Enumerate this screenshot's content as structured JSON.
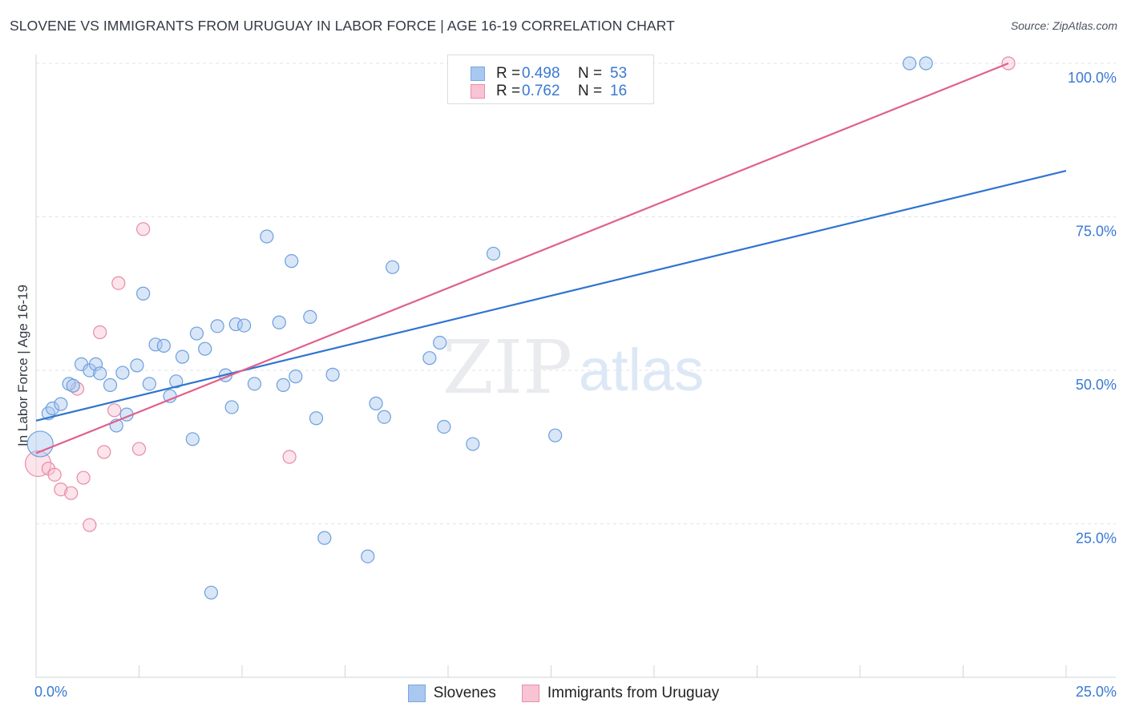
{
  "header": {
    "title": "SLOVENE VS IMMIGRANTS FROM URUGUAY IN LABOR FORCE | AGE 16-19 CORRELATION CHART",
    "source": "Source: ZipAtlas.com"
  },
  "watermark": {
    "zip": "ZIP",
    "atlas": "atlas"
  },
  "legend_top": {
    "rows": [
      {
        "r_label": "R =",
        "r_value": "0.498",
        "n_label": "N =",
        "n_value": "53",
        "color": "#a9c8f0",
        "border": "#7aa7e0"
      },
      {
        "r_label": "R =",
        "r_value": "0.762",
        "n_label": "N =",
        "n_value": "16",
        "color": "#f8c3d3",
        "border": "#ea8fab"
      }
    ]
  },
  "legend_bottom": {
    "items": [
      {
        "label": "Slovenes",
        "color": "#a9c8f0",
        "border": "#7aa7e0"
      },
      {
        "label": "Immigrants from Uruguay",
        "color": "#f8c3d3",
        "border": "#ea8fab"
      }
    ]
  },
  "chart_data": {
    "type": "scatter",
    "title": "SLOVENE VS IMMIGRANTS FROM URUGUAY IN LABOR FORCE | AGE 16-19 CORRELATION CHART",
    "xlabel": "",
    "ylabel": "In Labor Force | Age 16-19",
    "xlim": [
      0,
      25
    ],
    "ylim": [
      0,
      100
    ],
    "x_tick_labels": [
      "0.0%",
      "25.0%"
    ],
    "y_ticks": [
      25,
      50,
      75,
      100
    ],
    "y_tick_labels": [
      "25.0%",
      "50.0%",
      "75.0%",
      "100.0%"
    ],
    "grid": true,
    "colors": {
      "slovenes": "#2f74d0",
      "uruguay": "#e0608d",
      "axis_label": "#3a79d3"
    },
    "series": [
      {
        "name": "Slovenes",
        "color": "#a9c8f0",
        "line_color": "#2f74d0",
        "trend": {
          "x": [
            0,
            25
          ],
          "y": [
            41.8,
            82.5
          ]
        },
        "points": [
          {
            "x": 0.1,
            "y": 38.0,
            "large": true
          },
          {
            "x": 0.3,
            "y": 43.0
          },
          {
            "x": 0.4,
            "y": 43.8
          },
          {
            "x": 0.6,
            "y": 44.5
          },
          {
            "x": 0.8,
            "y": 47.8
          },
          {
            "x": 0.9,
            "y": 47.5
          },
          {
            "x": 1.1,
            "y": 51.0
          },
          {
            "x": 1.3,
            "y": 50.0
          },
          {
            "x": 1.45,
            "y": 51.0
          },
          {
            "x": 1.55,
            "y": 49.5
          },
          {
            "x": 1.8,
            "y": 47.6
          },
          {
            "x": 1.95,
            "y": 41.0
          },
          {
            "x": 2.1,
            "y": 49.6
          },
          {
            "x": 2.2,
            "y": 42.8
          },
          {
            "x": 2.45,
            "y": 50.8
          },
          {
            "x": 2.6,
            "y": 62.5
          },
          {
            "x": 2.75,
            "y": 47.8
          },
          {
            "x": 2.9,
            "y": 54.2
          },
          {
            "x": 3.1,
            "y": 54.0
          },
          {
            "x": 3.25,
            "y": 45.8
          },
          {
            "x": 3.4,
            "y": 48.2
          },
          {
            "x": 3.55,
            "y": 52.2
          },
          {
            "x": 3.8,
            "y": 38.8
          },
          {
            "x": 3.9,
            "y": 56.0
          },
          {
            "x": 4.1,
            "y": 53.5
          },
          {
            "x": 4.25,
            "y": 13.8
          },
          {
            "x": 4.4,
            "y": 57.2
          },
          {
            "x": 4.6,
            "y": 49.2
          },
          {
            "x": 4.75,
            "y": 44.0
          },
          {
            "x": 4.85,
            "y": 57.5
          },
          {
            "x": 5.05,
            "y": 57.3
          },
          {
            "x": 5.3,
            "y": 47.8
          },
          {
            "x": 5.6,
            "y": 71.8
          },
          {
            "x": 5.9,
            "y": 57.8
          },
          {
            "x": 6.0,
            "y": 47.6
          },
          {
            "x": 6.2,
            "y": 67.8
          },
          {
            "x": 6.3,
            "y": 49.0
          },
          {
            "x": 6.65,
            "y": 58.7
          },
          {
            "x": 6.8,
            "y": 42.2
          },
          {
            "x": 7.0,
            "y": 22.7
          },
          {
            "x": 7.2,
            "y": 49.3
          },
          {
            "x": 8.05,
            "y": 19.7
          },
          {
            "x": 8.25,
            "y": 44.6
          },
          {
            "x": 8.45,
            "y": 42.4
          },
          {
            "x": 8.65,
            "y": 66.8
          },
          {
            "x": 9.55,
            "y": 52.0
          },
          {
            "x": 9.8,
            "y": 54.5
          },
          {
            "x": 9.9,
            "y": 40.8
          },
          {
            "x": 10.6,
            "y": 38.0
          },
          {
            "x": 11.1,
            "y": 69.0
          },
          {
            "x": 12.6,
            "y": 39.4
          },
          {
            "x": 21.2,
            "y": 100.0
          },
          {
            "x": 21.6,
            "y": 100.0
          }
        ]
      },
      {
        "name": "Immigrants from Uruguay",
        "color": "#f8c3d3",
        "line_color": "#e0608d",
        "trend": {
          "x": [
            0,
            23.6
          ],
          "y": [
            36.5,
            100.0
          ]
        },
        "points": [
          {
            "x": 0.05,
            "y": 34.8,
            "large": true
          },
          {
            "x": 0.3,
            "y": 34.0
          },
          {
            "x": 0.45,
            "y": 33.0
          },
          {
            "x": 0.6,
            "y": 30.6
          },
          {
            "x": 0.85,
            "y": 30.0
          },
          {
            "x": 1.0,
            "y": 47.0
          },
          {
            "x": 1.15,
            "y": 32.5
          },
          {
            "x": 1.3,
            "y": 24.8
          },
          {
            "x": 1.55,
            "y": 56.2
          },
          {
            "x": 1.65,
            "y": 36.7
          },
          {
            "x": 1.9,
            "y": 43.5
          },
          {
            "x": 2.0,
            "y": 64.2
          },
          {
            "x": 2.5,
            "y": 37.2
          },
          {
            "x": 2.6,
            "y": 73.0
          },
          {
            "x": 6.15,
            "y": 35.9
          },
          {
            "x": 23.6,
            "y": 100.0
          }
        ]
      }
    ]
  }
}
